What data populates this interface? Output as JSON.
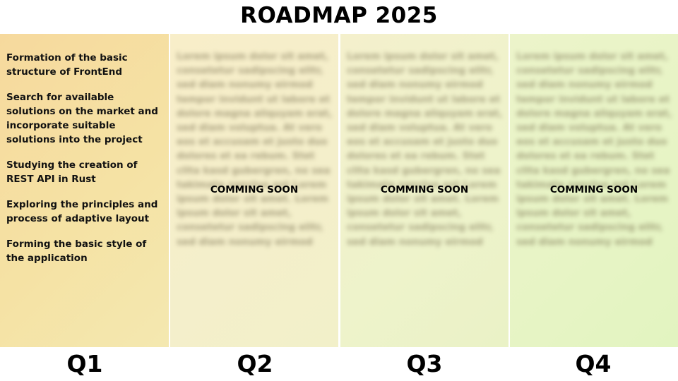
{
  "title": "ROADMAP 2025",
  "q1": {
    "items": [
      "Formation of the basic structure of FrontEnd",
      "Search for available solutions on the market and incorporate suitable solutions into the project",
      "Studying the creation of REST API in Rust",
      "Exploring the principles and process of adaptive layout",
      "Forming the basic style of the application"
    ]
  },
  "placeholder_text": "Lorem ipsum dolor sit amet, consetetur sadipscing elitr, sed diam nonumy eirmod tempor invidunt ut labore et dolore magna aliquyam erat, sed diam voluptua. At vero eos et accusam et justo duo dolores et ea rebum. Stet clita kasd gubergren, no sea takimata sanctus est Lorem ipsum dolor sit amet. Lorem ipsum dolor sit amet, consetetur sadipscing elitr, sed diam nonumy eirmod",
  "coming_soon": "COMMING SOON",
  "quarters": [
    "Q1",
    "Q2",
    "Q3",
    "Q4"
  ],
  "colors": {
    "q1": "#f6d99d",
    "q2": "#f6efcb",
    "q3": "#eef2c9",
    "q4": "#e6f4c4"
  }
}
